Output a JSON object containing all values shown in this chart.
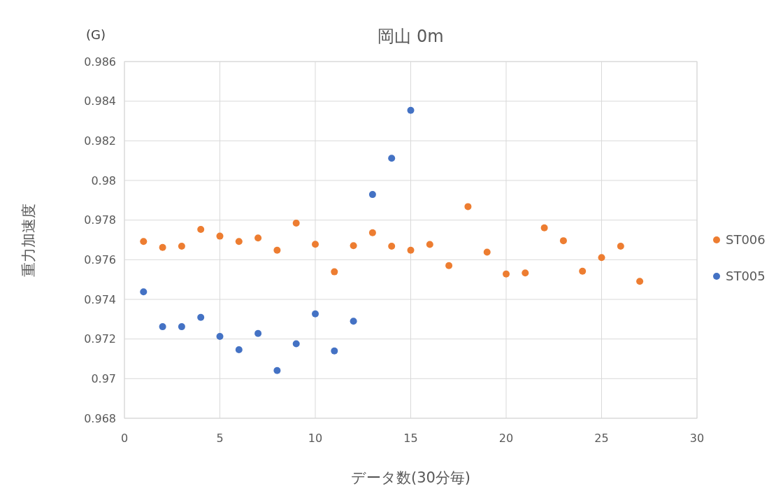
{
  "chart_data": {
    "type": "scatter",
    "title": "岡山 0m",
    "xlabel": "データ数(30分毎)",
    "ylabel": "重力加速度",
    "annotations": [
      "(G)"
    ],
    "xlim": [
      0,
      30
    ],
    "xticks": [
      0,
      5,
      10,
      15,
      20,
      25,
      30
    ],
    "ylim": [
      0.968,
      0.986
    ],
    "yticks": [
      0.968,
      0.97,
      0.972,
      0.974,
      0.976,
      0.978,
      0.98,
      0.982,
      0.984,
      0.986
    ],
    "grid": true,
    "legend": "right",
    "marker": "circle",
    "series": [
      {
        "name": "ST006",
        "color": "#ed7d31",
        "x": [
          1,
          2,
          3,
          4,
          5,
          6,
          7,
          8,
          9,
          10,
          11,
          12,
          13,
          14,
          15,
          16,
          17,
          18,
          19,
          20,
          21,
          22,
          23,
          24,
          25,
          26,
          27
        ],
        "values": [
          0.97692,
          0.97662,
          0.97668,
          0.97753,
          0.97719,
          0.97692,
          0.9771,
          0.97648,
          0.97785,
          0.97678,
          0.97539,
          0.97671,
          0.97736,
          0.97668,
          0.97648,
          0.97677,
          0.9757,
          0.97868,
          0.97638,
          0.97528,
          0.97533,
          0.97761,
          0.97696,
          0.97542,
          0.97611,
          0.97668,
          0.97491
        ]
      },
      {
        "name": "ST005",
        "color": "#4472c4",
        "x": [
          1,
          2,
          3,
          4,
          5,
          6,
          7,
          8,
          9,
          10,
          11,
          12,
          13,
          14,
          15
        ],
        "values": [
          0.97438,
          0.97262,
          0.97262,
          0.97309,
          0.97213,
          0.97146,
          0.97228,
          0.97041,
          0.97176,
          0.97327,
          0.9714,
          0.9729,
          0.97929,
          0.98112,
          0.98354
        ]
      }
    ]
  }
}
